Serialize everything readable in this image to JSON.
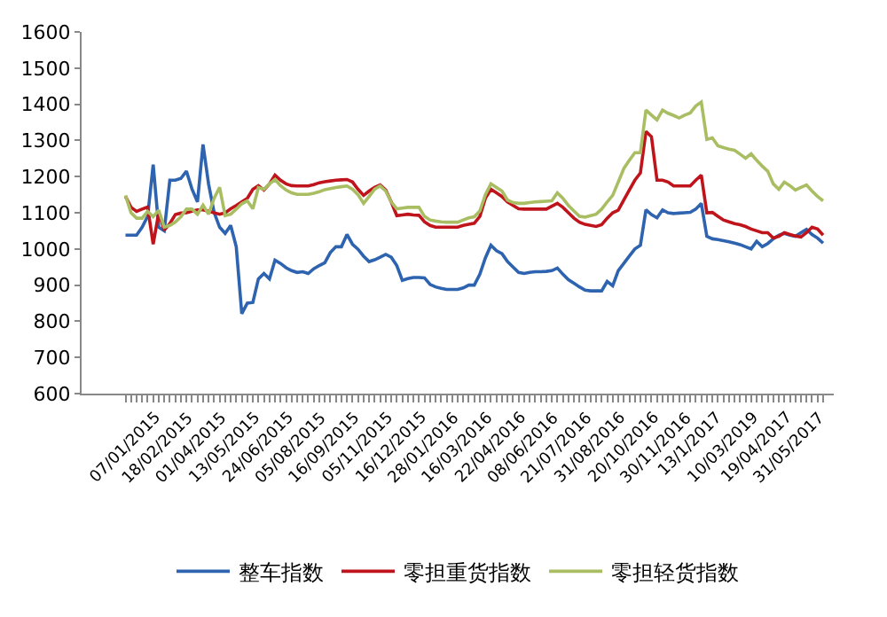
{
  "chart_data": {
    "type": "line",
    "categories": [
      "07/01/2015",
      null,
      null,
      null,
      null,
      null,
      "18/02/2015",
      null,
      null,
      null,
      null,
      null,
      "01/04/2015",
      null,
      null,
      null,
      null,
      null,
      "13/05/2015",
      null,
      null,
      null,
      null,
      null,
      "24/06/2015",
      null,
      null,
      null,
      null,
      null,
      "05/08/2015",
      null,
      null,
      null,
      null,
      null,
      "16/09/2015",
      null,
      null,
      null,
      null,
      null,
      "05/11/2015",
      null,
      null,
      null,
      null,
      null,
      "16/12/2015",
      null,
      null,
      null,
      null,
      null,
      "28/01/2016",
      null,
      null,
      null,
      null,
      null,
      "16/03/2016",
      null,
      null,
      null,
      null,
      null,
      "22/04/2016",
      null,
      null,
      null,
      null,
      null,
      "08/06/2016",
      null,
      null,
      null,
      null,
      null,
      "21/07/2016",
      null,
      null,
      null,
      null,
      null,
      "31/08/2016",
      null,
      null,
      null,
      null,
      null,
      "20/10/2016",
      null,
      null,
      null,
      null,
      null,
      "30/11/2016",
      null,
      null,
      null,
      null,
      null,
      "13/1/2017",
      null,
      null,
      null,
      null,
      null,
      "10/03/2019",
      null,
      null,
      null,
      null,
      null,
      "19/04/2017",
      null,
      null,
      null,
      null,
      null,
      "31/05/2017",
      null,
      null,
      null,
      null,
      null,
      null
    ],
    "series": [
      {
        "name": "整车指数",
        "color": "#2e63b0",
        "values": [
          1038,
          1038,
          1038,
          1060,
          1090,
          1233,
          1060,
          1050,
          1190,
          1190,
          1195,
          1215,
          1166,
          1130,
          1289,
          1180,
          1101,
          1060,
          1043,
          1065,
          1006,
          821,
          850,
          852,
          917,
          932,
          917,
          969,
          960,
          948,
          940,
          935,
          937,
          932,
          945,
          954,
          962,
          990,
          1006,
          1006,
          1040,
          1013,
          999,
          980,
          965,
          970,
          977,
          985,
          977,
          954,
          913,
          918,
          921,
          921,
          920,
          902,
          895,
          891,
          888,
          888,
          888,
          892,
          900,
          900,
          930,
          975,
          1010,
          995,
          987,
          965,
          950,
          935,
          932,
          935,
          937,
          937,
          938,
          940,
          947,
          930,
          915,
          905,
          895,
          886,
          884,
          884,
          884,
          910,
          898,
          940,
          960,
          980,
          1000,
          1010,
          1108,
          1095,
          1086,
          1108,
          1100,
          1098,
          1099,
          1100,
          1101,
          1110,
          1126,
          1035,
          1028,
          1026,
          1023,
          1020,
          1016,
          1012,
          1006,
          1000,
          1021,
          1006,
          1015,
          1028,
          1038,
          1043,
          1038,
          1035,
          1045,
          1054,
          1040,
          1030,
          1016
        ]
      },
      {
        "name": "零担重货指数",
        "color": "#c0141c",
        "values": [
          1145,
          1115,
          1104,
          1110,
          1116,
          1013,
          1100,
          1052,
          1070,
          1095,
          1099,
          1100,
          1104,
          1108,
          1108,
          1104,
          1100,
          1096,
          1100,
          1111,
          1120,
          1130,
          1140,
          1165,
          1175,
          1163,
          1180,
          1204,
          1190,
          1180,
          1175,
          1174,
          1174,
          1174,
          1178,
          1183,
          1186,
          1188,
          1190,
          1191,
          1192,
          1185,
          1165,
          1148,
          1160,
          1170,
          1177,
          1163,
          1130,
          1092,
          1094,
          1096,
          1094,
          1093,
          1075,
          1065,
          1060,
          1060,
          1060,
          1060,
          1060,
          1065,
          1068,
          1071,
          1090,
          1140,
          1165,
          1155,
          1145,
          1130,
          1120,
          1111,
          1110,
          1110,
          1110,
          1110,
          1110,
          1118,
          1126,
          1115,
          1100,
          1085,
          1074,
          1068,
          1065,
          1062,
          1067,
          1085,
          1100,
          1107,
          1135,
          1163,
          1190,
          1210,
          1325,
          1310,
          1190,
          1190,
          1185,
          1174,
          1174,
          1174,
          1174,
          1190,
          1204,
          1100,
          1101,
          1090,
          1080,
          1075,
          1070,
          1067,
          1062,
          1055,
          1050,
          1045,
          1045,
          1030,
          1035,
          1045,
          1040,
          1036,
          1033,
          1045,
          1060,
          1055,
          1038
        ]
      },
      {
        "name": "零担轻货指数",
        "color": "#a9be63",
        "values": [
          1148,
          1100,
          1085,
          1085,
          1104,
          1089,
          1107,
          1060,
          1065,
          1074,
          1089,
          1110,
          1110,
          1096,
          1121,
          1096,
          1140,
          1170,
          1092,
          1096,
          1110,
          1125,
          1133,
          1111,
          1170,
          1165,
          1180,
          1192,
          1175,
          1163,
          1155,
          1151,
          1151,
          1151,
          1154,
          1158,
          1164,
          1167,
          1170,
          1172,
          1174,
          1165,
          1150,
          1126,
          1145,
          1165,
          1174,
          1160,
          1130,
          1111,
          1113,
          1115,
          1115,
          1115,
          1090,
          1080,
          1077,
          1075,
          1074,
          1074,
          1074,
          1080,
          1086,
          1089,
          1105,
          1150,
          1180,
          1170,
          1160,
          1135,
          1128,
          1126,
          1126,
          1128,
          1130,
          1131,
          1132,
          1133,
          1155,
          1140,
          1120,
          1105,
          1090,
          1088,
          1092,
          1096,
          1110,
          1130,
          1148,
          1185,
          1222,
          1245,
          1266,
          1266,
          1384,
          1370,
          1357,
          1384,
          1375,
          1369,
          1362,
          1370,
          1376,
          1395,
          1406,
          1303,
          1307,
          1285,
          1280,
          1276,
          1273,
          1262,
          1251,
          1263,
          1245,
          1229,
          1215,
          1180,
          1165,
          1185,
          1175,
          1163,
          1170,
          1177,
          1160,
          1145,
          1133
        ]
      }
    ],
    "ylim": [
      600,
      1600
    ],
    "yticks": [
      600,
      700,
      800,
      900,
      1000,
      1100,
      1200,
      1300,
      1400,
      1500,
      1600
    ],
    "legend": "bottom",
    "marker": "none",
    "line_style": "solid"
  }
}
